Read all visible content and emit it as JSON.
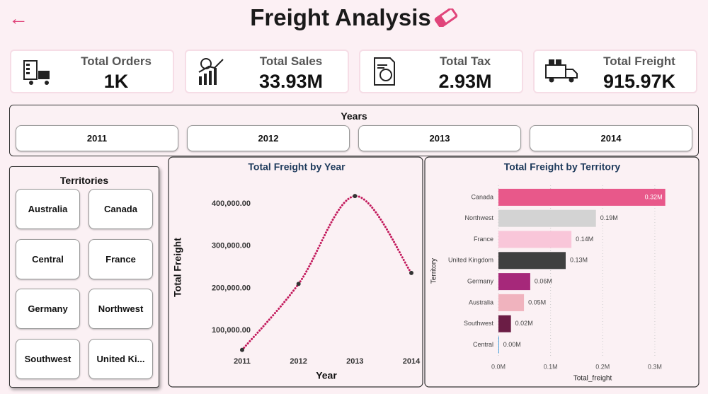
{
  "header": {
    "title": "Freight Analysis"
  },
  "kpis": [
    {
      "label": "Total Orders",
      "value": "1K"
    },
    {
      "label": "Total Sales",
      "value": "33.93M"
    },
    {
      "label": "Total Tax",
      "value": "2.93M"
    },
    {
      "label": "Total Freight",
      "value": "915.97K"
    }
  ],
  "years": {
    "title": "Years",
    "options": [
      "2011",
      "2012",
      "2013",
      "2014"
    ]
  },
  "territories": {
    "title": "Territories",
    "options": [
      "Australia",
      "Canada",
      "Central",
      "France",
      "Germany",
      "Northwest",
      "Southwest",
      "United Ki..."
    ]
  },
  "chart_data": [
    {
      "type": "line",
      "title": "Total Freight by Year",
      "x_label": "Year",
      "y_label": "Total Freight",
      "categories": [
        "2011",
        "2012",
        "2013",
        "2014"
      ],
      "series": [
        {
          "name": "Total Freight",
          "color": "#c2185b",
          "values": [
            54000,
            210000,
            418000,
            236000
          ]
        }
      ],
      "ylim": [
        45000,
        430000
      ],
      "yticks": [
        {
          "value": 100000,
          "label": "100,000.00"
        },
        {
          "value": 200000,
          "label": "200,000.00"
        },
        {
          "value": 300000,
          "label": "300,000.00"
        },
        {
          "value": 400000,
          "label": "400,000.00"
        }
      ],
      "grid": false
    },
    {
      "type": "hbar",
      "title": "Total Freight by Territory",
      "x_label": "Total_freight",
      "y_label": "Territory",
      "categories": [
        "Canada",
        "Northwest",
        "France",
        "United Kingdom",
        "Germany",
        "Australia",
        "Southwest",
        "Central"
      ],
      "values": [
        320000,
        187000,
        140000,
        129000,
        61000,
        49000,
        24000,
        1000
      ],
      "value_labels": [
        "0.32M",
        "0.19M",
        "0.14M",
        "0.13M",
        "0.06M",
        "0.05M",
        "0.02M",
        "0.00M"
      ],
      "colors": [
        "#e8588a",
        "#d3d3d3",
        "#f9c6d9",
        "#404040",
        "#a6287a",
        "#f0b3be",
        "#6b1d45",
        "#4aa3df"
      ],
      "xlim": [
        0,
        330000
      ],
      "xticks": [
        {
          "value": 0,
          "label": "0.0M"
        },
        {
          "value": 100000,
          "label": "0.1M"
        },
        {
          "value": 200000,
          "label": "0.2M"
        },
        {
          "value": 300000,
          "label": "0.3M"
        }
      ],
      "grid": true
    }
  ]
}
